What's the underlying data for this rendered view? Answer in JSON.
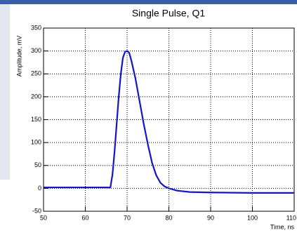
{
  "chart_data": {
    "type": "line",
    "title": "Single Pulse, Q1",
    "x_label": "Time, ns",
    "y_label": "Amplitude, mV",
    "x": [
      50,
      66,
      66.5,
      67,
      67.5,
      68,
      68.5,
      69,
      69.5,
      70,
      70.5,
      71,
      72,
      73,
      74,
      75,
      76,
      77,
      78,
      79,
      80,
      82,
      85,
      90,
      100,
      110
    ],
    "series": [
      {
        "color": "#1414c8",
        "values": [
          2,
          2,
          30,
          80,
          140,
          200,
          250,
          285,
          298,
          300,
          296,
          280,
          240,
          190,
          140,
          95,
          55,
          28,
          12,
          4,
          0,
          -5,
          -8,
          -9,
          -10,
          -10
        ]
      }
    ],
    "xlim": [
      50,
      110
    ],
    "xticks": [
      50,
      60,
      70,
      80,
      90,
      100,
      110
    ],
    "ylim": [
      -50,
      350
    ],
    "yticks": [
      -50,
      0,
      50,
      100,
      150,
      200,
      250,
      300,
      350
    ],
    "grid": true
  }
}
